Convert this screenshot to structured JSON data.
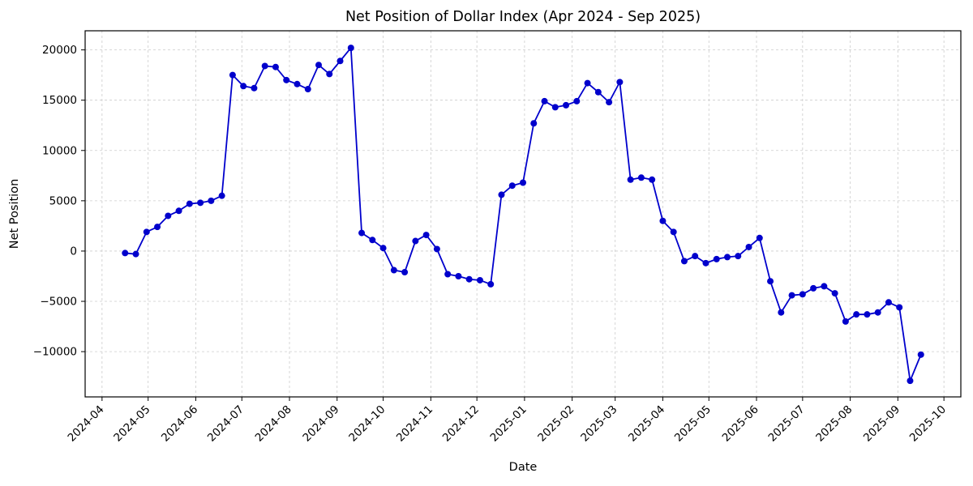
{
  "figure": {
    "background_color": "#ffffff"
  },
  "chart_data": {
    "type": "line",
    "title": "Net Position of Dollar Index (Apr 2024 - Sep 2025)",
    "xlabel": "Date",
    "ylabel": "Net Position",
    "legend": "none",
    "grid": "dashed",
    "grid_color": "#cccccc",
    "line_color": "#0000cc",
    "marker": "circle",
    "marker_color": "#0000cc",
    "xlim": [
      "2024-03-21",
      "2025-10-12"
    ],
    "ylim": [
      -14500,
      21900
    ],
    "x_ticks": [
      "2024-04",
      "2024-05",
      "2024-06",
      "2024-07",
      "2024-08",
      "2024-09",
      "2024-10",
      "2024-11",
      "2024-12",
      "2025-01",
      "2025-02",
      "2025-03",
      "2025-04",
      "2025-05",
      "2025-06",
      "2025-07",
      "2025-08",
      "2025-09",
      "2025-10"
    ],
    "y_ticks": [
      -10000,
      -5000,
      0,
      5000,
      10000,
      15000,
      20000
    ],
    "x": [
      "2024-04-16",
      "2024-04-23",
      "2024-04-30",
      "2024-05-07",
      "2024-05-14",
      "2024-05-21",
      "2024-05-28",
      "2024-06-04",
      "2024-06-11",
      "2024-06-18",
      "2024-06-25",
      "2024-07-02",
      "2024-07-09",
      "2024-07-16",
      "2024-07-23",
      "2024-07-30",
      "2024-08-06",
      "2024-08-13",
      "2024-08-20",
      "2024-08-27",
      "2024-09-03",
      "2024-09-10",
      "2024-09-17",
      "2024-09-24",
      "2024-10-01",
      "2024-10-08",
      "2024-10-15",
      "2024-10-22",
      "2024-10-29",
      "2024-11-05",
      "2024-11-12",
      "2024-11-19",
      "2024-11-26",
      "2024-12-03",
      "2024-12-10",
      "2024-12-17",
      "2024-12-24",
      "2024-12-31",
      "2025-01-07",
      "2025-01-14",
      "2025-01-21",
      "2025-01-28",
      "2025-02-04",
      "2025-02-11",
      "2025-02-18",
      "2025-02-25",
      "2025-03-04",
      "2025-03-11",
      "2025-03-18",
      "2025-03-25",
      "2025-04-01",
      "2025-04-08",
      "2025-04-15",
      "2025-04-22",
      "2025-04-29",
      "2025-05-06",
      "2025-05-13",
      "2025-05-20",
      "2025-05-27",
      "2025-06-03",
      "2025-06-10",
      "2025-06-17",
      "2025-06-24",
      "2025-07-01",
      "2025-07-08",
      "2025-07-15",
      "2025-07-22",
      "2025-07-29",
      "2025-08-05",
      "2025-08-12",
      "2025-08-19",
      "2025-08-26",
      "2025-09-02",
      "2025-09-09",
      "2025-09-16"
    ],
    "y": [
      -200,
      -300,
      1900,
      2400,
      3500,
      4000,
      4700,
      4800,
      5000,
      5500,
      17500,
      16400,
      16200,
      18400,
      18300,
      17000,
      16600,
      16100,
      18500,
      17600,
      18900,
      20200,
      1800,
      1100,
      300,
      -1900,
      -2100,
      1000,
      1600,
      200,
      -2300,
      -2500,
      -2800,
      -2900,
      -3300,
      5600,
      6500,
      6800,
      12700,
      14900,
      14300,
      14500,
      14900,
      16700,
      15800,
      14800,
      16800,
      7100,
      7300,
      7100,
      3000,
      1900,
      -1000,
      -500,
      -1200,
      -800,
      -600,
      -500,
      400,
      1300,
      -3000,
      -6100,
      -4400,
      -4300,
      -3700,
      -3500,
      -4200,
      -7000,
      -6300,
      -6300,
      -6100,
      -5100,
      -5600,
      -12900,
      -10300
    ]
  }
}
